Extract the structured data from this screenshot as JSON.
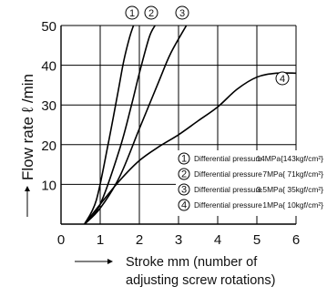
{
  "chart_data": {
    "type": "line",
    "xlabel": "Stroke mm (number of adjusting screw rotations)",
    "xlabel_lines": [
      "Stroke mm (number of",
      "adjusting screw rotations)"
    ],
    "ylabel": "Flow rate ℓ /min",
    "xlim": [
      0,
      6
    ],
    "ylim": [
      0,
      50
    ],
    "x_ticks": [
      "0",
      "1",
      "2",
      "3",
      "4",
      "5",
      "6"
    ],
    "y_ticks": [
      "10",
      "20",
      "30",
      "40",
      "50"
    ],
    "grid": true,
    "legend_position": "bottom-right",
    "series": [
      {
        "name": "① Differential pressure 14MPa{143kgf/cm²}",
        "marker": "①",
        "pressure": "14MPa{143kgf/cm²}",
        "points": [
          [
            0.6,
            0
          ],
          [
            0.9,
            6
          ],
          [
            1.2,
            20
          ],
          [
            1.45,
            33
          ],
          [
            1.6,
            41
          ],
          [
            1.75,
            47
          ],
          [
            1.85,
            50
          ]
        ]
      },
      {
        "name": "② Differential pressure 7MPa{ 71kgf/cm²}",
        "marker": "②",
        "pressure": "7MPa{ 71kgf/cm²}",
        "points": [
          [
            0.6,
            0
          ],
          [
            1.0,
            5
          ],
          [
            1.5,
            19
          ],
          [
            1.8,
            30
          ],
          [
            2.0,
            38
          ],
          [
            2.25,
            47
          ],
          [
            2.4,
            50
          ]
        ]
      },
      {
        "name": "③ Differential pressure 3.5MPa{ 35kgf/cm²}",
        "marker": "③",
        "pressure": "3.5MPa{ 35kgf/cm²}",
        "points": [
          [
            0.6,
            0
          ],
          [
            1.0,
            4
          ],
          [
            1.5,
            12
          ],
          [
            2.0,
            24
          ],
          [
            2.5,
            36
          ],
          [
            2.8,
            43
          ],
          [
            3.2,
            50
          ]
        ]
      },
      {
        "name": "④ Differential pressure 1MPa{ 10kgf/cm²}",
        "marker": "④",
        "pressure": "1MPa{ 10kgf/cm²}",
        "points": [
          [
            0.6,
            0
          ],
          [
            1.0,
            5
          ],
          [
            1.5,
            11
          ],
          [
            2.0,
            16
          ],
          [
            2.5,
            19.5
          ],
          [
            3.0,
            22.5
          ],
          [
            3.5,
            26
          ],
          [
            4.0,
            29.5
          ],
          [
            4.5,
            34
          ],
          [
            5.0,
            37
          ],
          [
            5.5,
            38
          ],
          [
            6.0,
            38
          ]
        ]
      }
    ]
  },
  "legend": {
    "prefix": "Differential pressure",
    "entries": [
      {
        "marker": "①",
        "pressure": "14MPa{143kgf/cm²}"
      },
      {
        "marker": "②",
        "pressure": "7MPa{ 71kgf/cm²}"
      },
      {
        "marker": "③",
        "pressure": "3.5MPa{ 35kgf/cm²}"
      },
      {
        "marker": "④",
        "pressure": "1MPa{ 10kgf/cm²}"
      }
    ]
  },
  "curve_labels": [
    "①",
    "②",
    "③",
    "④"
  ],
  "ylabel_parts": {
    "arrow": "⟶",
    "text": "Flow rate ℓ /min"
  },
  "xlabel_arrow": "⟶",
  "colors": {
    "line": "#000000",
    "grid": "#000000",
    "background": "#ffffff"
  }
}
